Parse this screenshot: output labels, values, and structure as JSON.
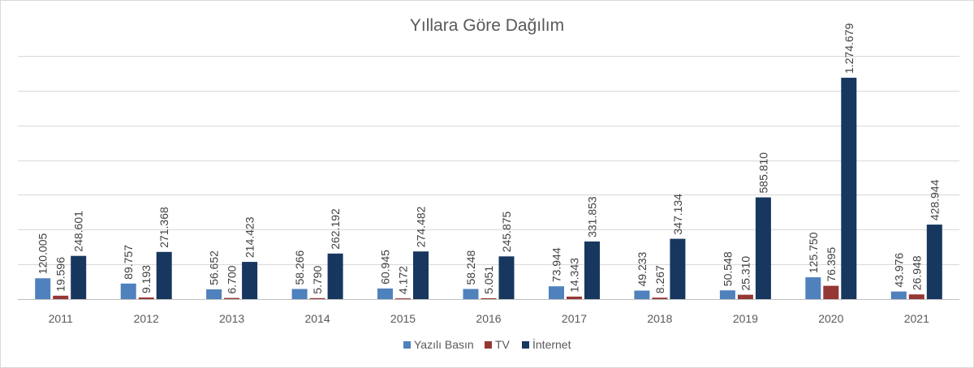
{
  "chart_data": {
    "type": "bar",
    "title": "Yıllara Göre Dağılım",
    "xlabel": "",
    "ylabel": "",
    "categories": [
      "2011",
      "2012",
      "2013",
      "2014",
      "2015",
      "2016",
      "2017",
      "2018",
      "2019",
      "2020",
      "2021"
    ],
    "series": [
      {
        "name": "Yazılı Basın",
        "color": "#4f81bd",
        "values": [
          120005,
          89757,
          56652,
          58266,
          60945,
          58248,
          73944,
          49233,
          50548,
          125750,
          43976
        ],
        "labels": [
          "120.005",
          "89.757",
          "56.652",
          "58.266",
          "60.945",
          "58.248",
          "73.944",
          "49.233",
          "50.548",
          "125.750",
          "43.976"
        ]
      },
      {
        "name": "TV",
        "color": "#953735",
        "values": [
          19596,
          9193,
          6700,
          5790,
          4172,
          5051,
          14343,
          8267,
          25310,
          76395,
          26948
        ],
        "labels": [
          "19.596",
          "9.193",
          "6.700",
          "5.790",
          "4.172",
          "5.051",
          "14.343",
          "8.267",
          "25.310",
          "76.395",
          "26.948"
        ]
      },
      {
        "name": "İnternet",
        "color": "#17375e",
        "values": [
          248601,
          271368,
          214423,
          262192,
          274482,
          245875,
          331853,
          347134,
          585810,
          1274679,
          428944
        ],
        "labels": [
          "248.601",
          "271.368",
          "214.423",
          "262.192",
          "274.482",
          "245.875",
          "331.853",
          "347.134",
          "585.810",
          "1.274.679",
          "428.944"
        ]
      }
    ],
    "ylim": [
      0,
      1400000
    ],
    "y_gridlines": [
      200000,
      400000,
      600000,
      800000,
      1000000,
      1200000,
      1400000
    ],
    "grid": true,
    "legend_position": "bottom",
    "y_axis_labels_shown": false
  }
}
